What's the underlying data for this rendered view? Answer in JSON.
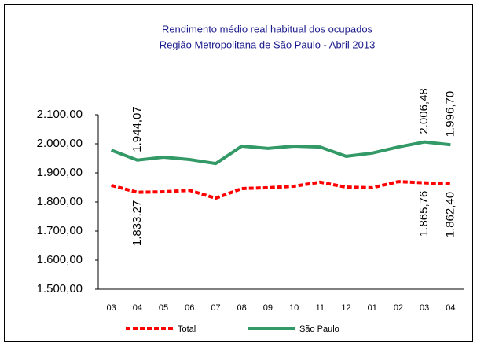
{
  "chart_data": {
    "type": "line",
    "title": "Rendimento médio real habitual dos ocupados",
    "subtitle": "Região Metropolitana de São Paulo - Abril 2013",
    "categories": [
      "03",
      "04",
      "05",
      "06",
      "07",
      "08",
      "09",
      "10",
      "11",
      "12",
      "01",
      "02",
      "03",
      "04"
    ],
    "series": [
      {
        "name": "Total",
        "color": "#ff0000",
        "dashed": true,
        "values": [
          1857,
          1833.27,
          1835,
          1840,
          1813,
          1846,
          1849,
          1854,
          1868,
          1851,
          1849,
          1870,
          1865.76,
          1862.4
        ],
        "value_labels": [
          null,
          "1.833,27",
          null,
          null,
          null,
          null,
          null,
          null,
          null,
          null,
          null,
          null,
          "1.865,76",
          "1.862,40"
        ]
      },
      {
        "name": "São Paulo",
        "color": "#339966",
        "dashed": false,
        "values": [
          1978,
          1944.07,
          1954,
          1946,
          1932,
          1992,
          1984,
          1992,
          1989,
          1957,
          1968,
          1989,
          2006.48,
          1996.7
        ],
        "value_labels": [
          null,
          "1.944,07",
          null,
          null,
          null,
          null,
          null,
          null,
          null,
          null,
          null,
          null,
          "2.006,48",
          "1.996,70"
        ]
      }
    ],
    "ylim": [
      1500,
      2100
    ],
    "yticks": [
      {
        "value": 1500,
        "label": "1.500,00"
      },
      {
        "value": 1600,
        "label": "1.600,00"
      },
      {
        "value": 1700,
        "label": "1.700,00"
      },
      {
        "value": 1800,
        "label": "1.800,00"
      },
      {
        "value": 1900,
        "label": "1.900,00"
      },
      {
        "value": 2000,
        "label": "2.000,00"
      },
      {
        "value": 2100,
        "label": "2.100,00"
      }
    ],
    "legend": "bottom"
  }
}
